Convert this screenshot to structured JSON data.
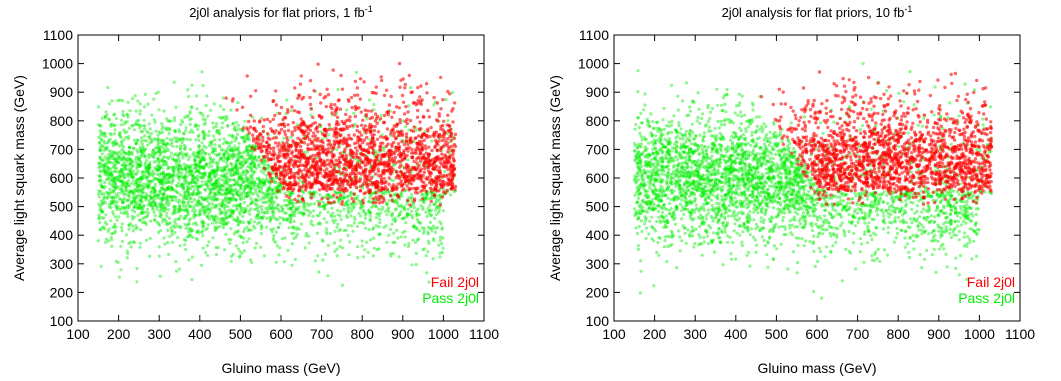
{
  "chart_data": [
    {
      "type": "scatter",
      "title_main": "2j0l analysis for flat priors, 1 fb",
      "title_sup": "-1",
      "xlabel": "Gluino mass (GeV)",
      "ylabel": "Average light squark mass (GeV)",
      "xlim": [
        100,
        1100
      ],
      "ylim": [
        100,
        1100
      ],
      "xticks": [
        "100",
        "200",
        "300",
        "400",
        "500",
        "600",
        "700",
        "800",
        "900",
        "1000",
        "1100"
      ],
      "yticks": [
        "100",
        "200",
        "300",
        "400",
        "500",
        "600",
        "700",
        "800",
        "900",
        "1000",
        "1100"
      ],
      "grid": false,
      "legend_position": "bottom-right",
      "series": [
        {
          "name": "Fail 2j0l",
          "color": "#ff0000",
          "region": {
            "x_range": [
              450,
              1030
            ],
            "y_range": [
              540,
              1000
            ],
            "density": "high"
          }
        },
        {
          "name": "Pass 2j0l",
          "color": "#00ee00",
          "region": {
            "x_range": [
              150,
              1000
            ],
            "y_range": [
              200,
              1000
            ],
            "density": "high"
          }
        }
      ]
    },
    {
      "type": "scatter",
      "title_main": "2j0l analysis for flat priors, 10 fb",
      "title_sup": "-1",
      "xlabel": "Gluino mass (GeV)",
      "ylabel": "Average light squark mass (GeV)",
      "xlim": [
        100,
        1100
      ],
      "ylim": [
        100,
        1100
      ],
      "xticks": [
        "100",
        "200",
        "300",
        "400",
        "500",
        "600",
        "700",
        "800",
        "900",
        "1000",
        "1100"
      ],
      "yticks": [
        "100",
        "200",
        "300",
        "400",
        "500",
        "600",
        "700",
        "800",
        "900",
        "1000",
        "1100"
      ],
      "grid": false,
      "legend_position": "bottom-right",
      "series": [
        {
          "name": "Fail 2j0l",
          "color": "#ff0000",
          "region": {
            "x_range": [
              450,
              1030
            ],
            "y_range": [
              540,
              1000
            ],
            "density": "high"
          }
        },
        {
          "name": "Pass 2j0l",
          "color": "#00ee00",
          "region": {
            "x_range": [
              150,
              1000
            ],
            "y_range": [
              200,
              1000
            ],
            "density": "high"
          }
        }
      ]
    }
  ]
}
